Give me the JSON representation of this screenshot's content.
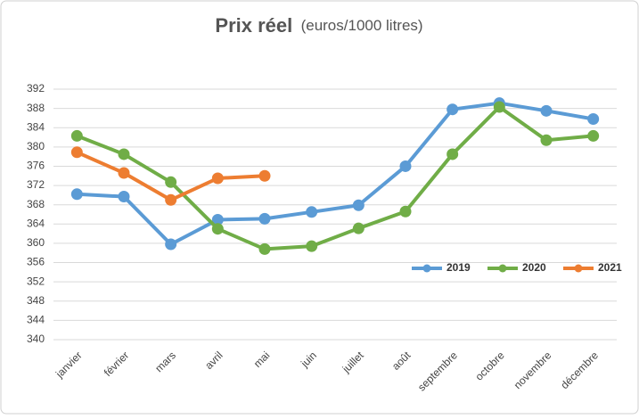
{
  "chart_data": {
    "type": "line",
    "title": "Prix réel",
    "subtitle": "(euros/1000 litres)",
    "categories": [
      "janvier",
      "février",
      "mars",
      "avril",
      "mai",
      "juin",
      "juillet",
      "août",
      "septembre",
      "octobre",
      "novembre",
      "décembre"
    ],
    "series": [
      {
        "name": "2019",
        "color": "#5b9bd5",
        "values": [
          370.2,
          369.7,
          359.8,
          364.9,
          365.1,
          366.5,
          367.9,
          376.0,
          387.8,
          389.1,
          387.5,
          385.8
        ]
      },
      {
        "name": "2020",
        "color": "#70ad47",
        "values": [
          382.3,
          378.5,
          372.7,
          363.0,
          358.8,
          359.4,
          363.1,
          366.6,
          378.5,
          388.3,
          381.4,
          382.3
        ]
      },
      {
        "name": "2021",
        "color": "#ed7d31",
        "values": [
          378.9,
          374.6,
          369.0,
          373.5,
          374.0,
          null,
          null,
          null,
          null,
          null,
          null,
          null
        ]
      }
    ],
    "ylim": [
      340,
      392
    ],
    "yticks": [
      340,
      344,
      348,
      352,
      356,
      360,
      364,
      368,
      372,
      376,
      380,
      384,
      388,
      392
    ],
    "grid": true,
    "legend": "right"
  }
}
